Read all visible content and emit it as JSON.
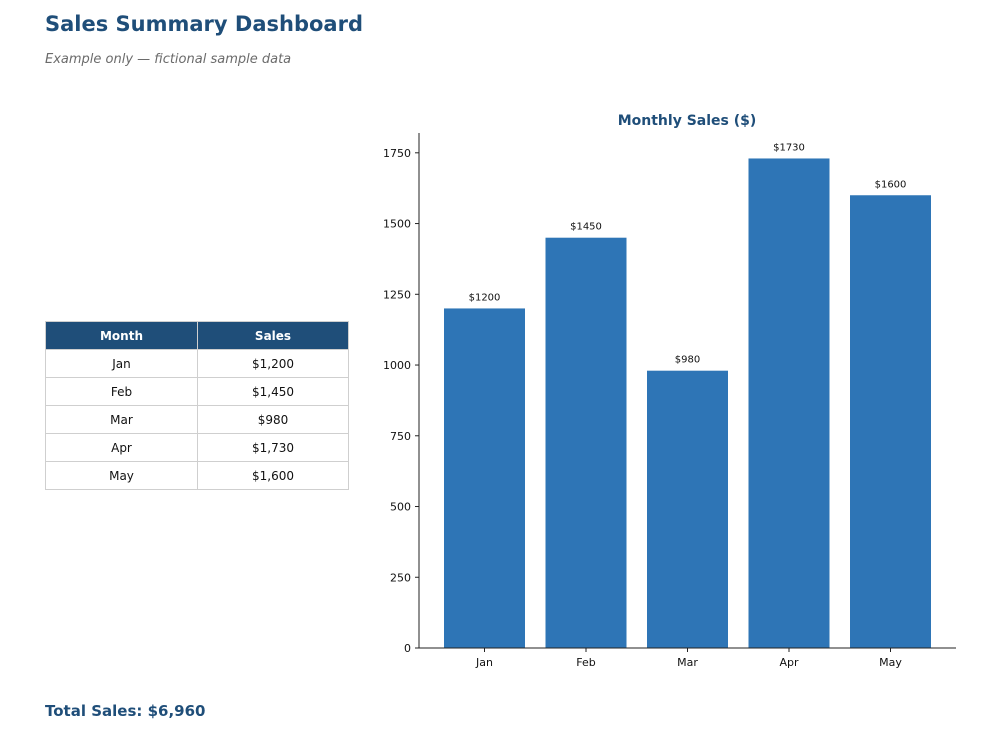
{
  "page": {
    "title": "Sales Summary Dashboard",
    "subtitle": "Example only — fictional sample data",
    "total_sales": "Total Sales: $6,960"
  },
  "table": {
    "headers": [
      "Month",
      "Sales"
    ],
    "rows": [
      {
        "month": "Jan",
        "sales": "$1,200"
      },
      {
        "month": "Feb",
        "sales": "$1,450"
      },
      {
        "month": "Mar",
        "sales": "$980"
      },
      {
        "month": "Apr",
        "sales": "$1,730"
      },
      {
        "month": "May",
        "sales": "$1,600"
      }
    ]
  },
  "colors": {
    "accent": "#1f4e79",
    "bar": "#2e75b6"
  },
  "chart_data": {
    "type": "bar",
    "title": "Monthly Sales ($)",
    "xlabel": "",
    "ylabel": "",
    "categories": [
      "Jan",
      "Feb",
      "Mar",
      "Apr",
      "May"
    ],
    "values": [
      1200,
      1450,
      980,
      1730,
      1600
    ],
    "data_labels": [
      "$1200",
      "$1450",
      "$980",
      "$1730",
      "$1600"
    ],
    "ylim": [
      0,
      1820
    ],
    "yticks": [
      0,
      250,
      500,
      750,
      1000,
      1250,
      1500,
      1750
    ],
    "grid": false,
    "legend": "none"
  }
}
